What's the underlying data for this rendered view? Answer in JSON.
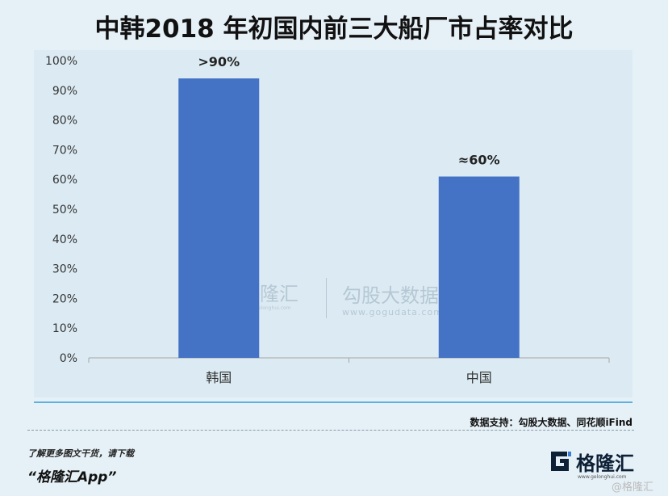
{
  "title": "中韩2018 年初国内前三大船厂市占率对比",
  "source": "数据支持：勾股大数据、同花顺iFind",
  "promo": {
    "line1": "了解更多图文干货，请下载",
    "line2": "“格隆汇App”"
  },
  "logo": {
    "name": "格隆汇",
    "url": "www.gelonghui.com"
  },
  "watermark": {
    "name1": "格隆汇",
    "url1": "www.gelonghui.com",
    "name2": "勾股大数据",
    "url2": "www.gogudata.com"
  },
  "corner_mark": "@格隆汇",
  "colors": {
    "bar": "#4472c4",
    "background": "#e6f1f7",
    "plot_background": "#dcebf3",
    "accent_line": "#5fb0dc"
  },
  "chart_data": {
    "type": "bar",
    "title": "中韩2018 年初国内前三大船厂市占率对比",
    "categories": [
      "韩国",
      "中国"
    ],
    "values": [
      94,
      61
    ],
    "data_labels": [
      ">90%",
      "≈60%"
    ],
    "ylim": [
      0,
      100
    ],
    "yticks": [
      "0%",
      "10%",
      "20%",
      "30%",
      "40%",
      "50%",
      "60%",
      "70%",
      "80%",
      "90%",
      "100%"
    ],
    "xlabel": "",
    "ylabel": "",
    "grid": false,
    "legend": "none"
  }
}
